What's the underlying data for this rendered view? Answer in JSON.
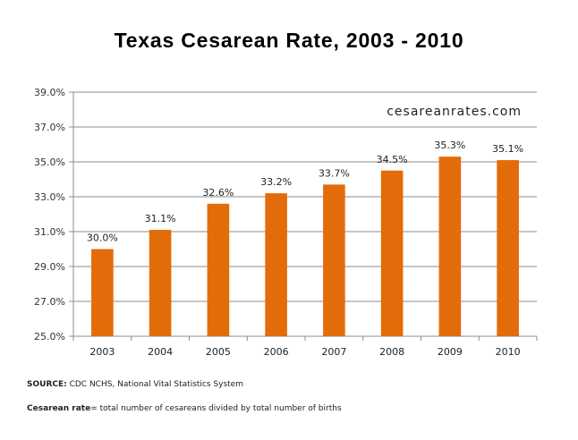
{
  "chart_data": {
    "type": "bar",
    "title": "Texas Cesarean Rate, 2003 - 2010",
    "categories": [
      "2003",
      "2004",
      "2005",
      "2006",
      "2007",
      "2008",
      "2009",
      "2010"
    ],
    "values": [
      30.0,
      31.1,
      32.6,
      33.2,
      33.7,
      34.5,
      35.3,
      35.1
    ],
    "data_labels": [
      "30.0%",
      "31.1%",
      "32.6%",
      "33.2%",
      "33.7%",
      "34.5%",
      "35.3%",
      "35.1%"
    ],
    "ylim": [
      25.0,
      39.0
    ],
    "yticks": [
      25.0,
      27.0,
      29.0,
      31.0,
      33.0,
      35.0,
      37.0,
      39.0
    ],
    "ytick_labels": [
      "25.0%",
      "27.0%",
      "29.0%",
      "31.0%",
      "33.0%",
      "35.0%",
      "37.0%",
      "39.0%"
    ],
    "grid": true,
    "legend": "none",
    "bar_color": "#E36C0A",
    "watermark": "cesareanrates.com"
  },
  "footer": {
    "source_label": "SOURCE:",
    "source_text": " CDC NCHS, National Vital Statistics System",
    "definition_label": "Cesarean rate",
    "definition_text": "= total number of cesareans divided by total number of births"
  }
}
